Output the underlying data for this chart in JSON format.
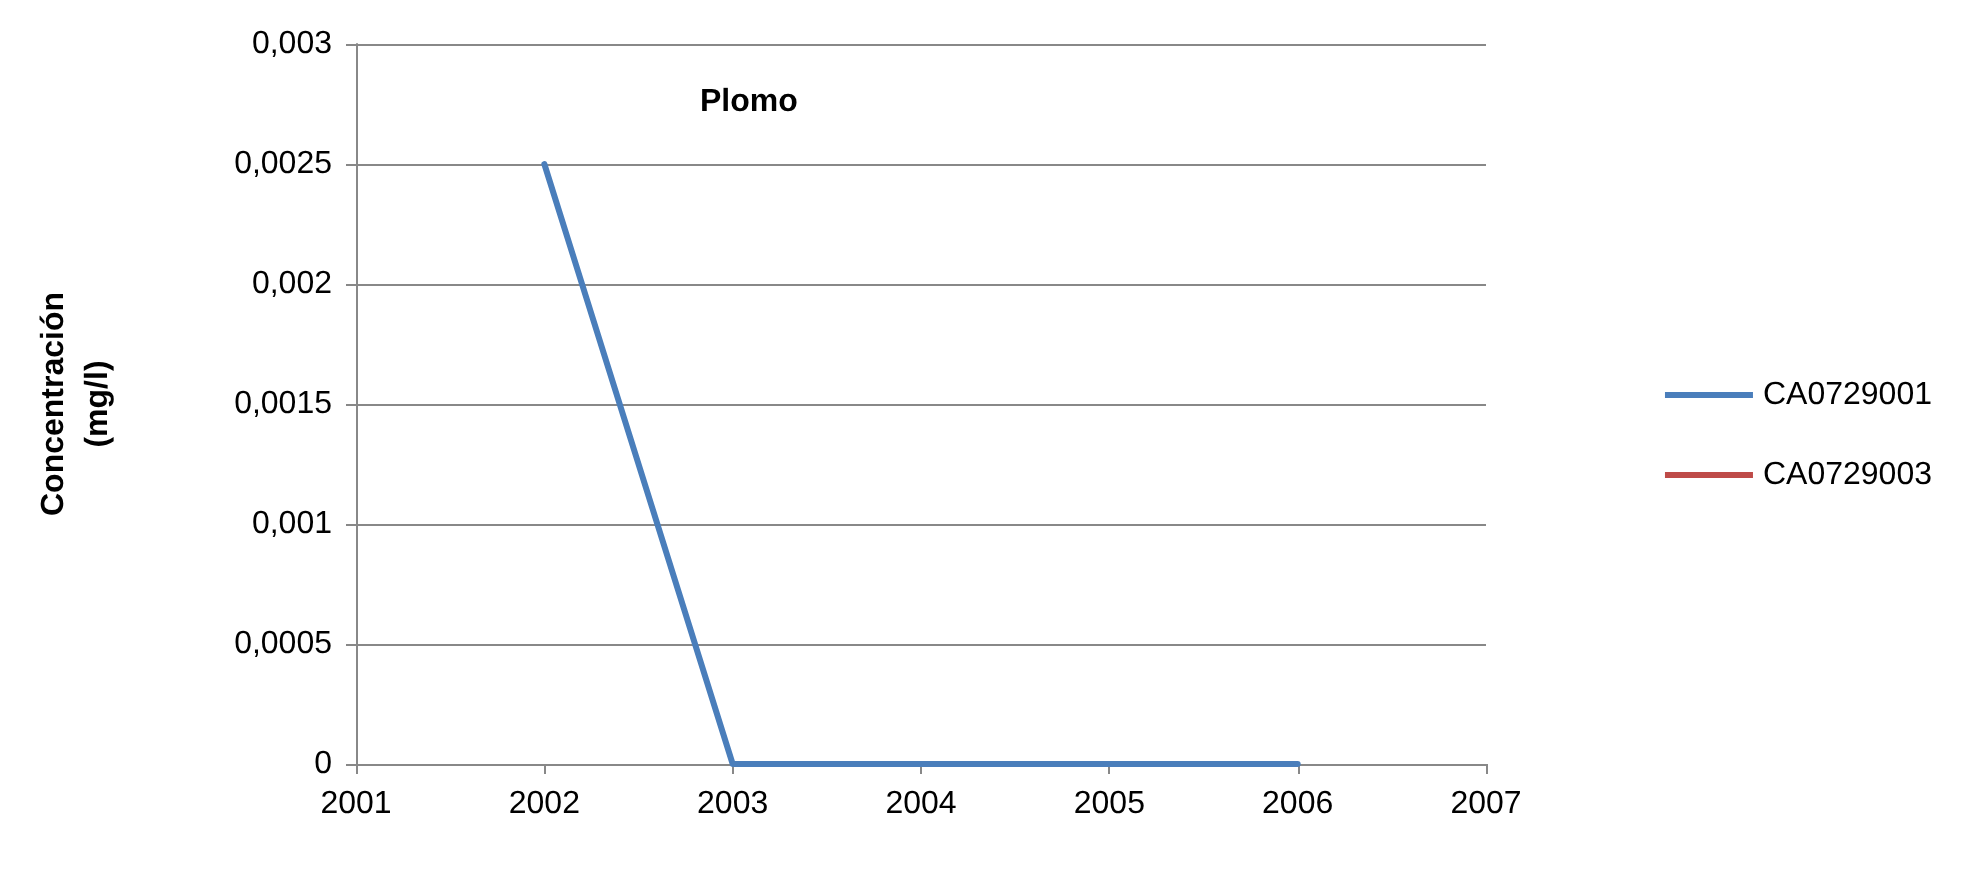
{
  "chart_data": {
    "type": "line",
    "title": "Plomo",
    "ylabel": "Concentración\n(mg/l)",
    "x": [
      2002,
      2003,
      2004,
      2005,
      2006
    ],
    "series": [
      {
        "name": "CA0729001",
        "color": "#4a7ebb",
        "values": [
          0.0025,
          0,
          0,
          0,
          0
        ]
      },
      {
        "name": "CA0729003",
        "color": "#be4b48",
        "values": [
          null,
          null,
          null,
          null,
          null
        ]
      }
    ],
    "xlim": [
      2001,
      2007
    ],
    "xticks": [
      2001,
      2002,
      2003,
      2004,
      2005,
      2006,
      2007
    ],
    "ylim": [
      0,
      0.003
    ],
    "yticks": [
      {
        "value": 0,
        "label": "0"
      },
      {
        "value": 0.0005,
        "label": "0,0005"
      },
      {
        "value": 0.001,
        "label": "0,001"
      },
      {
        "value": 0.0015,
        "label": "0,0015"
      },
      {
        "value": 0.002,
        "label": "0,002"
      },
      {
        "value": 0.0025,
        "label": "0,0025"
      },
      {
        "value": 0.003,
        "label": "0,003"
      }
    ],
    "grid": "y",
    "legend": "right",
    "marker": "none",
    "line_style": "solid"
  }
}
